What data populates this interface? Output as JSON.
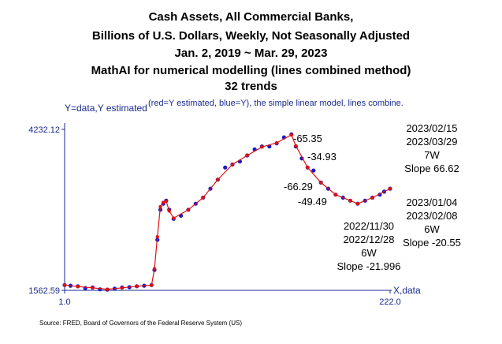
{
  "title_lines": [
    "Cash Assets, All Commercial Banks,",
    "Billions of U.S. Dollars, Weekly, Not Seasonally Adjusted",
    "Jan. 2, 2019 ~ Mar. 29, 2023",
    "MathAI for numerical modelling (lines combined method)",
    "32 trends"
  ],
  "y_axis_title": "Y=data,Y estimated",
  "legend_note": "(red=Y estimated, blue=Y), the simple linear model, lines combine.",
  "x_axis_title": "X,data",
  "source": "Source: FRED, Board of Governors of the Federal Reserve System (US)",
  "annotations": {
    "slope_a": "-65.35",
    "slope_b": "-34.93",
    "slope_c": "-66.29",
    "slope_d": "-49.49",
    "seg1": [
      "2023/02/15",
      "2023/03/29",
      "7W",
      "Slope 66.62"
    ],
    "seg2": [
      "2023/01/04",
      "2023/02/08",
      "6W",
      "Slope -20.55"
    ],
    "seg3": [
      "2022/11/30",
      "2022/12/28",
      "6W",
      "Slope -21.996"
    ]
  },
  "colors": {
    "estimated": "#dd1111",
    "data": "#1a1acc",
    "axis": "#1a2a8c"
  },
  "chart_data": {
    "type": "line",
    "xlabel": "X,data",
    "ylabel": "Y=data,Y estimated",
    "xlim": [
      1.0,
      222.0
    ],
    "ylim": [
      1562.59,
      4232.12
    ],
    "x_tick_labels": [
      "1.0",
      "222.0"
    ],
    "y_tick_labels": [
      "1562.59",
      "4232.12"
    ],
    "series": [
      {
        "name": "Y",
        "color": "#1a1acc",
        "points": [
          [
            1,
            1650
          ],
          [
            5,
            1640
          ],
          [
            10,
            1630
          ],
          [
            15,
            1600
          ],
          [
            20,
            1610
          ],
          [
            25,
            1580
          ],
          [
            30,
            1575
          ],
          [
            35,
            1590
          ],
          [
            40,
            1610
          ],
          [
            45,
            1615
          ],
          [
            50,
            1630
          ],
          [
            55,
            1640
          ],
          [
            60,
            1650
          ],
          [
            62,
            1900
          ],
          [
            64,
            2400
          ],
          [
            66,
            2900
          ],
          [
            68,
            3000
          ],
          [
            70,
            3050
          ],
          [
            72,
            2900
          ],
          [
            75,
            2750
          ],
          [
            80,
            2800
          ],
          [
            85,
            2900
          ],
          [
            90,
            3000
          ],
          [
            95,
            3100
          ],
          [
            100,
            3250
          ],
          [
            105,
            3400
          ],
          [
            110,
            3600
          ],
          [
            115,
            3650
          ],
          [
            120,
            3700
          ],
          [
            125,
            3800
          ],
          [
            130,
            3900
          ],
          [
            135,
            3950
          ],
          [
            140,
            3950
          ],
          [
            145,
            4000
          ],
          [
            150,
            4100
          ],
          [
            155,
            4150
          ],
          [
            158,
            3950
          ],
          [
            162,
            3750
          ],
          [
            166,
            3600
          ],
          [
            170,
            3550
          ],
          [
            175,
            3350
          ],
          [
            180,
            3250
          ],
          [
            185,
            3150
          ],
          [
            190,
            3100
          ],
          [
            195,
            3050
          ],
          [
            200,
            3000
          ],
          [
            205,
            3050
          ],
          [
            210,
            3100
          ],
          [
            215,
            3150
          ],
          [
            218,
            3200
          ],
          [
            222,
            3250
          ]
        ]
      },
      {
        "name": "Y estimated",
        "color": "#dd1111",
        "points": [
          [
            1,
            1650
          ],
          [
            10,
            1625
          ],
          [
            20,
            1605
          ],
          [
            30,
            1580
          ],
          [
            40,
            1605
          ],
          [
            50,
            1630
          ],
          [
            60,
            1648
          ],
          [
            62,
            1920
          ],
          [
            64,
            2450
          ],
          [
            66,
            2950
          ],
          [
            68,
            3020
          ],
          [
            70,
            3040
          ],
          [
            72,
            2880
          ],
          [
            75,
            2760
          ],
          [
            85,
            2900
          ],
          [
            95,
            3100
          ],
          [
            105,
            3400
          ],
          [
            115,
            3650
          ],
          [
            125,
            3800
          ],
          [
            135,
            3940
          ],
          [
            145,
            4010
          ],
          [
            155,
            4140
          ],
          [
            158,
            3960
          ],
          [
            166,
            3600
          ],
          [
            175,
            3350
          ],
          [
            185,
            3150
          ],
          [
            195,
            3050
          ],
          [
            200,
            3000
          ],
          [
            210,
            3100
          ],
          [
            222,
            3250
          ]
        ]
      }
    ]
  }
}
